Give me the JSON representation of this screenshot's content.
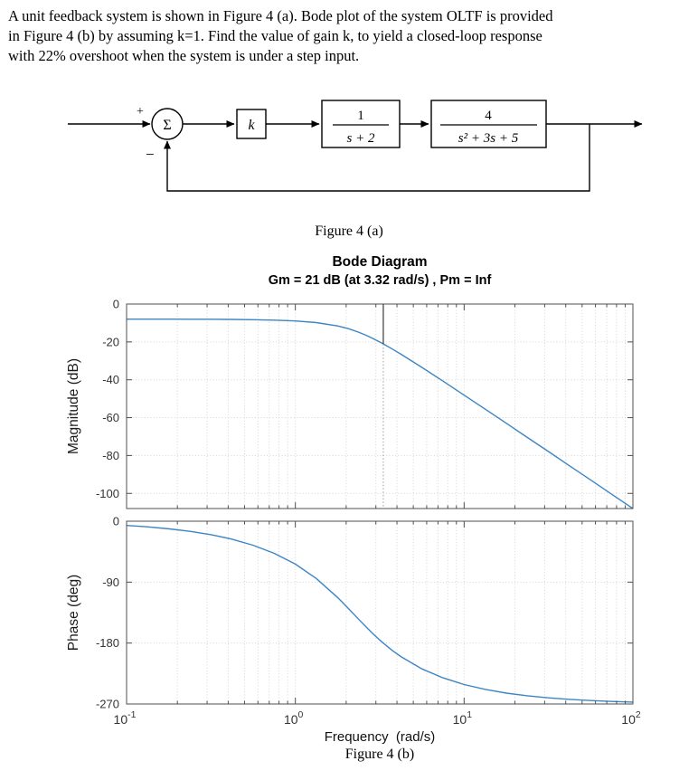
{
  "problem": {
    "lines": [
      "A unit feedback system is shown in Figure 4 (a). Bode plot of the system OLTF is provided",
      "in Figure 4 (b) by assuming k=1. Find the value of gain k, to yield a closed-loop response",
      "with 22% overshoot when the system is under a step input."
    ]
  },
  "diagram": {
    "sum_symbol": "Σ",
    "plus_sign": "+",
    "minus_sign": "−",
    "gain_label": "k",
    "block1": {
      "numerator": "1",
      "denominator": "s + 2"
    },
    "block2": {
      "numerator": "4",
      "denominator": "s² + 3s + 5"
    },
    "caption": "Figure 4 (a)"
  },
  "chart_data": {
    "type": "line",
    "title": "Bode Diagram",
    "subtitle": "Gm = 21 dB (at 3.32 rad/s) ,  Pm = Inf",
    "xlabel": "Frequency  (rad/s)",
    "x_scale": "log",
    "xlim": [
      0.1,
      100
    ],
    "x_tick_exponents": [
      -1,
      0,
      1,
      2
    ],
    "grid": true,
    "line_color": "#3d85c4",
    "magnitude": {
      "ylabel": "Magnitude (dB)",
      "ylim": [
        -108,
        0
      ],
      "yticks": [
        0,
        -20,
        -40,
        -60,
        -80,
        -100
      ]
    },
    "phase": {
      "ylabel": "Phase (deg)",
      "ylim": [
        -270,
        0
      ],
      "yticks": [
        0,
        -90,
        -180,
        -270
      ]
    },
    "margin_marker": {
      "frequency": 3.32,
      "gm_db": 21
    },
    "series": {
      "frequency": [
        0.1,
        0.13,
        0.18,
        0.24,
        0.32,
        0.42,
        0.56,
        0.75,
        1,
        1.33,
        1.78,
        2.05,
        2.37,
        2.66,
        2.82,
        3.16,
        3.32,
        3.76,
        4.22,
        5.62,
        7.5,
        10,
        13.3,
        17.8,
        23.7,
        31.6,
        42.2,
        56.2,
        75,
        100
      ],
      "magnitude_db": [
        -7.97,
        -7.97,
        -7.99,
        -8.01,
        -8.05,
        -8.12,
        -8.25,
        -8.49,
        -8.93,
        -9.78,
        -11.55,
        -12.95,
        -14.86,
        -16.73,
        -17.78,
        -20.01,
        -21.05,
        -23.78,
        -26.46,
        -33.43,
        -40.72,
        -48.1,
        -55.5,
        -63.0,
        -70.5,
        -77.9,
        -85.5,
        -92.9,
        -100.5,
        -108.0
      ],
      "phase_deg": [
        -6.3,
        -8.2,
        -11.3,
        -15.1,
        -20.2,
        -26.5,
        -35.4,
        -47.4,
        -63.4,
        -84.6,
        -112.7,
        -128.3,
        -144.8,
        -157.6,
        -163.9,
        -175.4,
        -180.0,
        -191.0,
        -200.0,
        -218.1,
        -231.4,
        -241.2,
        -248.4,
        -253.9,
        -257.9,
        -260.9,
        -263.2,
        -264.9,
        -266.2,
        -267.2
      ]
    }
  },
  "figure_b_caption": "Figure 4 (b)"
}
